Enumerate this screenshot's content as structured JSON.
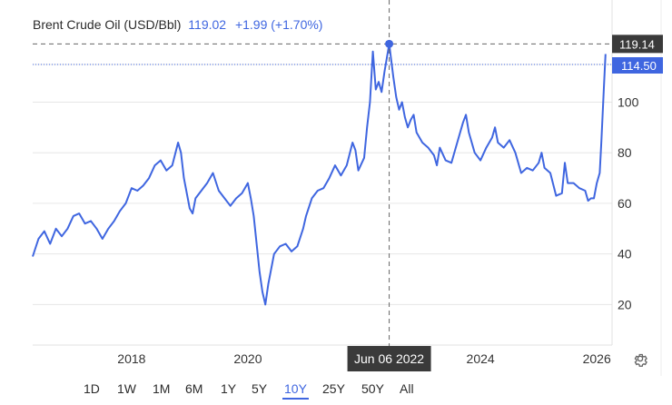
{
  "header": {
    "instrument": "Brent Crude Oil (USD/Bbl)",
    "price": "119.02",
    "change": "+1.99 (+1.70%)"
  },
  "crosshair": {
    "date_label": "Jun 06 2022",
    "price_label": "119.14"
  },
  "last_price_label": "114.50",
  "range_buttons": [
    "1D",
    "1W",
    "1M",
    "6M",
    "1Y",
    "5Y",
    "10Y",
    "25Y",
    "50Y",
    "All"
  ],
  "active_range": "10Y",
  "icons": {
    "settings": "gear-icon"
  },
  "colors": {
    "line": "#3f66e0",
    "crosshair_badge": "#3a3a3a",
    "accent": "#3f66e0"
  },
  "chart_data": {
    "type": "line",
    "title": "Brent Crude Oil (USD/Bbl)",
    "xlabel": "",
    "ylabel": "",
    "x_ticks": [
      "2018",
      "2020",
      "2024",
      "2026"
    ],
    "y_ticks": [
      20,
      40,
      60,
      80,
      100
    ],
    "ylim": [
      4,
      126
    ],
    "xlim": [
      2016.3,
      2026.2
    ],
    "grid": "horizontal",
    "series": [
      {
        "values": [
          [
            2016.3,
            39
          ],
          [
            2016.4,
            46
          ],
          [
            2016.5,
            49
          ],
          [
            2016.6,
            44
          ],
          [
            2016.7,
            50
          ],
          [
            2016.8,
            47
          ],
          [
            2016.9,
            50
          ],
          [
            2017.0,
            55
          ],
          [
            2017.1,
            56
          ],
          [
            2017.2,
            52
          ],
          [
            2017.3,
            53
          ],
          [
            2017.4,
            50
          ],
          [
            2017.5,
            46
          ],
          [
            2017.6,
            50
          ],
          [
            2017.7,
            53
          ],
          [
            2017.8,
            57
          ],
          [
            2017.9,
            60
          ],
          [
            2018.0,
            66
          ],
          [
            2018.1,
            65
          ],
          [
            2018.2,
            67
          ],
          [
            2018.3,
            70
          ],
          [
            2018.4,
            75
          ],
          [
            2018.5,
            77
          ],
          [
            2018.6,
            73
          ],
          [
            2018.7,
            75
          ],
          [
            2018.8,
            84
          ],
          [
            2018.85,
            80
          ],
          [
            2018.9,
            70
          ],
          [
            2019.0,
            58
          ],
          [
            2019.05,
            56
          ],
          [
            2019.1,
            62
          ],
          [
            2019.2,
            65
          ],
          [
            2019.3,
            68
          ],
          [
            2019.4,
            72
          ],
          [
            2019.5,
            65
          ],
          [
            2019.6,
            62
          ],
          [
            2019.7,
            59
          ],
          [
            2019.8,
            62
          ],
          [
            2019.9,
            64
          ],
          [
            2020.0,
            68
          ],
          [
            2020.05,
            62
          ],
          [
            2020.1,
            55
          ],
          [
            2020.2,
            33
          ],
          [
            2020.25,
            25
          ],
          [
            2020.3,
            20
          ],
          [
            2020.35,
            28
          ],
          [
            2020.45,
            40
          ],
          [
            2020.55,
            43
          ],
          [
            2020.65,
            44
          ],
          [
            2020.75,
            41
          ],
          [
            2020.85,
            43
          ],
          [
            2020.95,
            50
          ],
          [
            2021.0,
            55
          ],
          [
            2021.1,
            62
          ],
          [
            2021.2,
            65
          ],
          [
            2021.3,
            66
          ],
          [
            2021.4,
            70
          ],
          [
            2021.5,
            75
          ],
          [
            2021.6,
            71
          ],
          [
            2021.7,
            75
          ],
          [
            2021.8,
            84
          ],
          [
            2021.85,
            81
          ],
          [
            2021.9,
            73
          ],
          [
            2022.0,
            78
          ],
          [
            2022.05,
            90
          ],
          [
            2022.1,
            100
          ],
          [
            2022.15,
            120
          ],
          [
            2022.2,
            105
          ],
          [
            2022.25,
            108
          ],
          [
            2022.3,
            104
          ],
          [
            2022.35,
            112
          ],
          [
            2022.43,
            123
          ],
          [
            2022.5,
            110
          ],
          [
            2022.55,
            102
          ],
          [
            2022.6,
            97
          ],
          [
            2022.65,
            100
          ],
          [
            2022.7,
            94
          ],
          [
            2022.75,
            90
          ],
          [
            2022.8,
            93
          ],
          [
            2022.85,
            95
          ],
          [
            2022.9,
            88
          ],
          [
            2023.0,
            84
          ],
          [
            2023.1,
            82
          ],
          [
            2023.2,
            79
          ],
          [
            2023.25,
            75
          ],
          [
            2023.3,
            82
          ],
          [
            2023.4,
            77
          ],
          [
            2023.5,
            76
          ],
          [
            2023.6,
            84
          ],
          [
            2023.7,
            92
          ],
          [
            2023.75,
            95
          ],
          [
            2023.8,
            88
          ],
          [
            2023.9,
            80
          ],
          [
            2024.0,
            77
          ],
          [
            2024.1,
            82
          ],
          [
            2024.2,
            86
          ],
          [
            2024.25,
            90
          ],
          [
            2024.3,
            84
          ],
          [
            2024.4,
            82
          ],
          [
            2024.5,
            85
          ],
          [
            2024.6,
            80
          ],
          [
            2024.7,
            72
          ],
          [
            2024.8,
            74
          ],
          [
            2024.9,
            73
          ],
          [
            2025.0,
            76
          ],
          [
            2025.05,
            80
          ],
          [
            2025.1,
            74
          ],
          [
            2025.2,
            72
          ],
          [
            2025.3,
            63
          ],
          [
            2025.4,
            64
          ],
          [
            2025.45,
            76
          ],
          [
            2025.5,
            68
          ],
          [
            2025.6,
            68
          ],
          [
            2025.7,
            66
          ],
          [
            2025.8,
            65
          ],
          [
            2025.85,
            61
          ],
          [
            2025.9,
            62
          ],
          [
            2025.95,
            62
          ],
          [
            2026.0,
            68
          ],
          [
            2026.05,
            72
          ],
          [
            2026.08,
            85
          ],
          [
            2026.12,
            105
          ],
          [
            2026.15,
            119
          ]
        ]
      }
    ],
    "crosshair_x": 2022.43,
    "crosshair_y": 123
  }
}
